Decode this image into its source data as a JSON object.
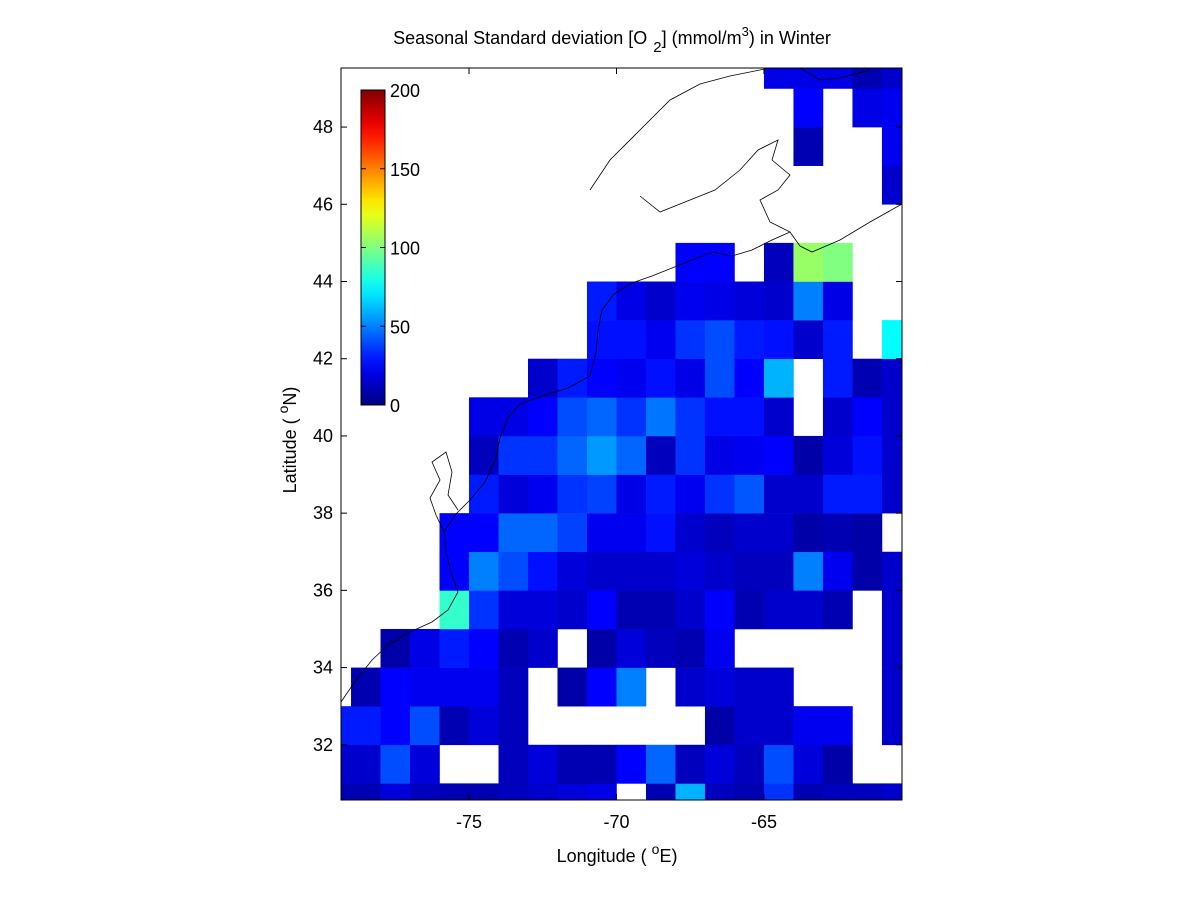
{
  "chart_data": {
    "type": "heatmap",
    "title": [
      "Seasonal Standard deviation [O",
      "2",
      "] (mmol/m",
      "3",
      ") in  Winter"
    ],
    "xlabel": [
      "Longitude ( ",
      "o",
      "E)"
    ],
    "ylabel": [
      "Latitude ( ",
      "o",
      "N)"
    ],
    "xlim": [
      -79.34,
      -60.32
    ],
    "ylim": [
      30.57,
      49.53
    ],
    "xticks": [
      -75,
      -70,
      -65
    ],
    "yticks": [
      32,
      34,
      36,
      38,
      40,
      42,
      44,
      46,
      48
    ],
    "x": [
      -79.5,
      -78.5,
      -77.5,
      -76.5,
      -75.5,
      -74.5,
      -73.5,
      -72.5,
      -71.5,
      -70.5,
      -69.5,
      -68.5,
      -67.5,
      -66.5,
      -65.5,
      -64.5,
      -63.5,
      -62.5,
      -61.5,
      -60.5
    ],
    "y": [
      30.5,
      31.5,
      32.5,
      33.5,
      34.5,
      35.5,
      36.5,
      37.5,
      38.5,
      39.5,
      40.5,
      41.5,
      42.5,
      43.5,
      44.5,
      45.5,
      46.5,
      47.5,
      48.5,
      49.5
    ],
    "values": [
      [
        10,
        10,
        18,
        12,
        10,
        10,
        12,
        15,
        18,
        20,
        null,
        10,
        60,
        12,
        10,
        35,
        10,
        12,
        12,
        15
      ],
      [
        15,
        15,
        40,
        18,
        null,
        null,
        12,
        18,
        10,
        10,
        25,
        45,
        12,
        18,
        12,
        40,
        18,
        8,
        null,
        null
      ],
      [
        30,
        30,
        25,
        40,
        10,
        18,
        12,
        null,
        null,
        null,
        null,
        null,
        null,
        8,
        15,
        15,
        22,
        22,
        null,
        15
      ],
      [
        null,
        10,
        25,
        22,
        22,
        22,
        12,
        null,
        8,
        25,
        50,
        null,
        15,
        18,
        15,
        15,
        null,
        null,
        null,
        15
      ],
      [
        null,
        null,
        8,
        20,
        30,
        25,
        10,
        15,
        null,
        8,
        18,
        12,
        10,
        22,
        null,
        null,
        null,
        null,
        null,
        15
      ],
      [
        null,
        null,
        null,
        null,
        85,
        35,
        18,
        18,
        15,
        25,
        10,
        10,
        15,
        25,
        10,
        15,
        15,
        10,
        null,
        15
      ],
      [
        null,
        null,
        null,
        null,
        25,
        50,
        40,
        28,
        18,
        15,
        15,
        15,
        18,
        15,
        12,
        12,
        50,
        22,
        8,
        15
      ],
      [
        null,
        null,
        null,
        null,
        25,
        25,
        45,
        45,
        38,
        22,
        22,
        28,
        15,
        12,
        15,
        15,
        8,
        10,
        8,
        null
      ],
      [
        null,
        null,
        null,
        null,
        null,
        30,
        18,
        22,
        35,
        38,
        20,
        30,
        22,
        35,
        42,
        15,
        15,
        30,
        30,
        15
      ],
      [
        null,
        null,
        null,
        null,
        null,
        12,
        35,
        35,
        45,
        55,
        45,
        12,
        35,
        20,
        22,
        25,
        8,
        18,
        28,
        15
      ],
      [
        null,
        null,
        null,
        null,
        null,
        20,
        20,
        25,
        40,
        45,
        35,
        48,
        35,
        28,
        28,
        15,
        null,
        15,
        25,
        15
      ],
      [
        null,
        null,
        null,
        null,
        null,
        null,
        null,
        15,
        30,
        25,
        22,
        28,
        20,
        40,
        25,
        60,
        null,
        30,
        10,
        15
      ],
      [
        null,
        null,
        null,
        null,
        null,
        null,
        null,
        null,
        null,
        28,
        28,
        22,
        35,
        40,
        30,
        28,
        15,
        30,
        null,
        75
      ],
      [
        null,
        null,
        null,
        null,
        null,
        null,
        null,
        null,
        null,
        30,
        20,
        15,
        22,
        20,
        18,
        15,
        50,
        20,
        null,
        null
      ],
      [
        null,
        null,
        null,
        null,
        null,
        null,
        null,
        null,
        null,
        null,
        null,
        null,
        25,
        25,
        null,
        12,
        105,
        100,
        null,
        null
      ],
      [
        null,
        null,
        null,
        null,
        null,
        null,
        null,
        null,
        null,
        null,
        null,
        null,
        null,
        null,
        null,
        null,
        null,
        null,
        null,
        null
      ],
      [
        null,
        null,
        null,
        null,
        null,
        null,
        null,
        null,
        null,
        null,
        null,
        null,
        null,
        null,
        null,
        null,
        null,
        null,
        null,
        15
      ],
      [
        null,
        null,
        null,
        null,
        null,
        null,
        null,
        null,
        null,
        null,
        null,
        null,
        null,
        null,
        null,
        null,
        10,
        null,
        null,
        22
      ],
      [
        null,
        null,
        null,
        null,
        null,
        null,
        null,
        null,
        null,
        null,
        null,
        null,
        null,
        null,
        null,
        null,
        25,
        null,
        20,
        22
      ],
      [
        null,
        null,
        null,
        null,
        null,
        null,
        null,
        null,
        null,
        null,
        null,
        null,
        null,
        null,
        null,
        20,
        20,
        20,
        10,
        15
      ]
    ],
    "colormap": "jet",
    "colorbar": {
      "lim": [
        0,
        200
      ],
      "ticks": [
        0,
        50,
        100,
        150,
        200
      ]
    }
  }
}
